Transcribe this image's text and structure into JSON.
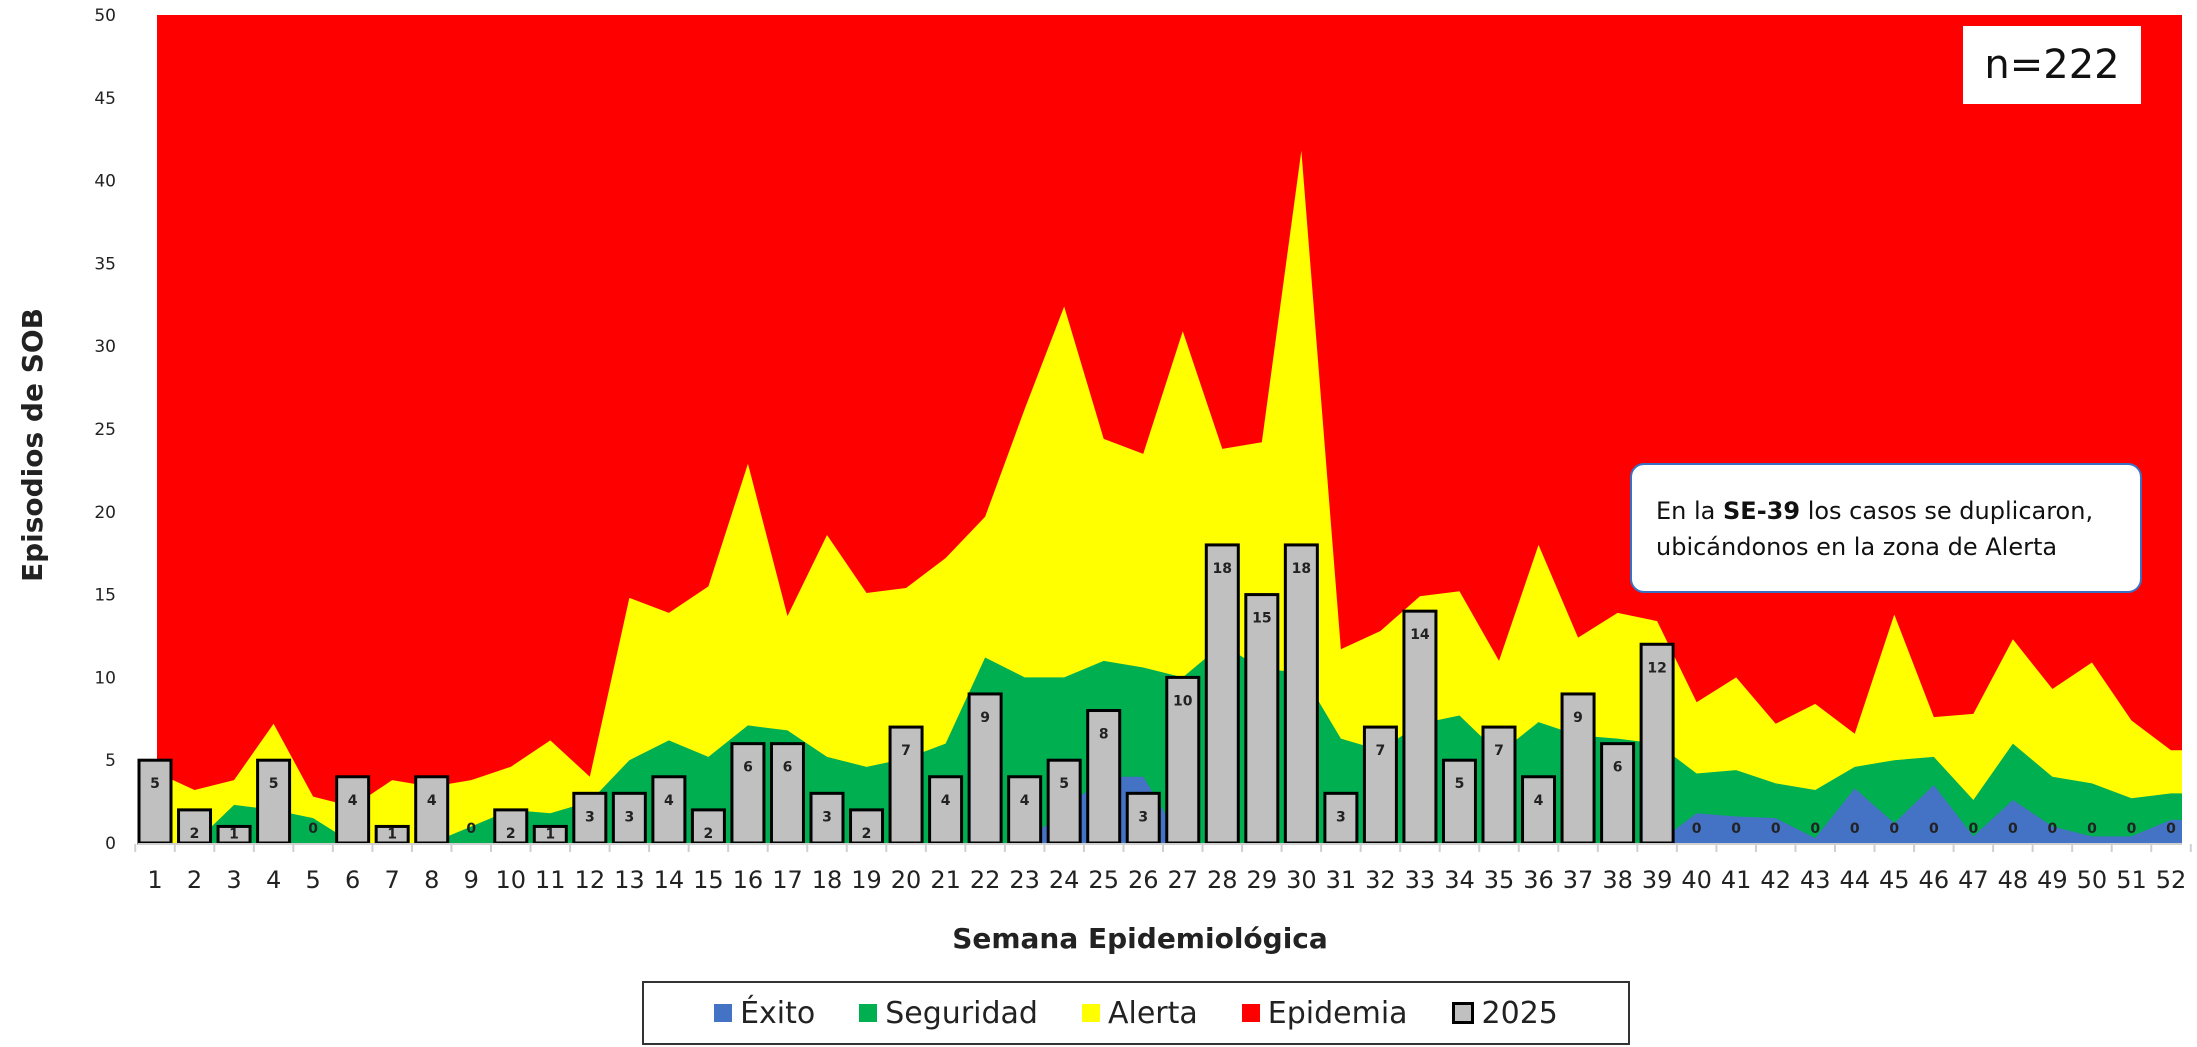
{
  "chart_data": {
    "type": "area",
    "xlabel": "Semana Epidemiológica",
    "ylabel": "Episodios de SOB",
    "ylim": [
      0,
      50
    ],
    "yticks": [
      0,
      5,
      10,
      15,
      20,
      25,
      30,
      35,
      40,
      45,
      50
    ],
    "grid": false,
    "legend_position": "bottom",
    "x": [
      1,
      2,
      3,
      4,
      5,
      6,
      7,
      8,
      9,
      10,
      11,
      12,
      13,
      14,
      15,
      16,
      17,
      18,
      19,
      20,
      21,
      22,
      23,
      24,
      25,
      26,
      27,
      28,
      29,
      30,
      31,
      32,
      33,
      34,
      35,
      36,
      37,
      38,
      39,
      40,
      41,
      42,
      43,
      44,
      45,
      46,
      47,
      48,
      49,
      50,
      51,
      52
    ],
    "zones": [
      {
        "name": "Éxito",
        "color": "#4472c4",
        "values": [
          0,
          0,
          0,
          0,
          0,
          0,
          0,
          0,
          0,
          0,
          0,
          0,
          0,
          0,
          0,
          0,
          0,
          0,
          0,
          0,
          0,
          0,
          0,
          2,
          4,
          4,
          0,
          0,
          0,
          0,
          0,
          0,
          0,
          0,
          0,
          0,
          0,
          0,
          0,
          1.8,
          1.6,
          1.5,
          0.3,
          3.3,
          1.2,
          3.5,
          0.4,
          2.6,
          1,
          0.4,
          0.4,
          1.4
        ]
      },
      {
        "name": "Seguridad",
        "color": "#00b050",
        "values": [
          0,
          0,
          2.3,
          2,
          1.5,
          0,
          0,
          0,
          1,
          2,
          1.8,
          2.5,
          5,
          6.2,
          5.2,
          7.1,
          6.8,
          5.2,
          4.6,
          5.1,
          6,
          11.2,
          10,
          10,
          11,
          10.6,
          10,
          12,
          10.5,
          10.3,
          6.3,
          5.6,
          7.2,
          7.7,
          5.4,
          7.3,
          6.5,
          6.3,
          6,
          4.2,
          4.4,
          3.6,
          3.2,
          4.6,
          5,
          5.2,
          2.6,
          6,
          4,
          3.6,
          2.7,
          3
        ]
      },
      {
        "name": "Alerta",
        "color": "#ffff00",
        "values": [
          4.3,
          3.2,
          3.8,
          7.2,
          2.8,
          2.2,
          3.8,
          3.4,
          3.8,
          4.6,
          6.2,
          4,
          14.8,
          13.9,
          15.5,
          22.9,
          13.7,
          18.6,
          15.1,
          15.4,
          17.2,
          19.7,
          26.2,
          32.4,
          24.4,
          23.5,
          30.9,
          23.8,
          24.2,
          41.8,
          11.7,
          12.8,
          14.9,
          15.2,
          11,
          18,
          12.4,
          13.9,
          13.4,
          8.5,
          10,
          7.2,
          8.4,
          6.6,
          13.8,
          7.6,
          7.8,
          12.3,
          9.3,
          10.9,
          7.4,
          5.6
        ]
      },
      {
        "name": "Epidemia",
        "color": "#ff0000",
        "values": [
          50,
          50,
          50,
          50,
          50,
          50,
          50,
          50,
          50,
          50,
          50,
          50,
          50,
          50,
          50,
          50,
          50,
          50,
          50,
          50,
          50,
          50,
          50,
          50,
          50,
          50,
          50,
          50,
          50,
          50,
          50,
          50,
          50,
          50,
          50,
          50,
          50,
          50,
          50,
          50,
          50,
          50,
          50,
          50,
          50,
          50,
          50,
          50,
          50,
          50,
          50,
          50
        ]
      }
    ],
    "series": [
      {
        "name": "2025",
        "color": "#c0c0c0",
        "values": [
          5,
          2,
          1,
          5,
          0,
          4,
          1,
          4,
          0,
          2,
          1,
          3,
          3,
          4,
          2,
          6,
          6,
          3,
          2,
          7,
          4,
          9,
          4,
          5,
          8,
          3,
          10,
          18,
          15,
          18,
          3,
          7,
          14,
          5,
          7,
          4,
          9,
          6,
          12,
          0,
          0,
          0,
          0,
          0,
          0,
          0,
          0,
          0,
          0,
          0,
          0,
          0
        ]
      }
    ],
    "annotations": [
      {
        "text": "n=222"
      },
      {
        "parts": [
          "En la ",
          "SE-39",
          " los casos se duplicaron,",
          "ubicándonos  en la zona de Alerta"
        ]
      }
    ]
  }
}
